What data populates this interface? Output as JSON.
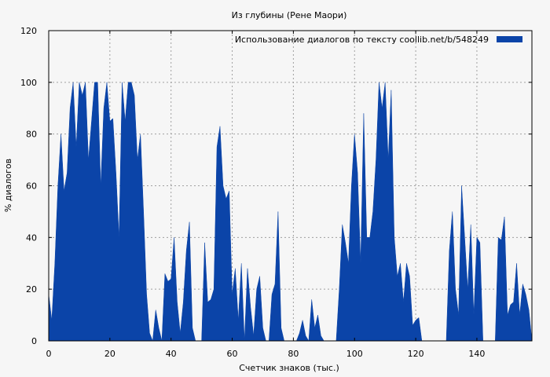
{
  "chart_data": {
    "type": "area",
    "title": "Из глубины (Рене Маори)",
    "xlabel": "Счетчик знаков (тыс.)",
    "ylabel": "% диалогов",
    "xlim": [
      0,
      158
    ],
    "ylim": [
      0,
      120
    ],
    "xticks": [
      0,
      20,
      40,
      60,
      80,
      100,
      120,
      140
    ],
    "yticks": [
      0,
      20,
      40,
      60,
      80,
      100,
      120
    ],
    "grid": true,
    "legend_position": "top-right",
    "series": [
      {
        "name": "Использование диалогов по тексту  coollib.net/b/548249",
        "color": "#0b44a8",
        "x": [
          0,
          1,
          2,
          3,
          4,
          5,
          6,
          7,
          8,
          9,
          10,
          11,
          12,
          13,
          14,
          15,
          16,
          17,
          18,
          19,
          20,
          21,
          22,
          23,
          24,
          25,
          26,
          27,
          28,
          29,
          30,
          31,
          32,
          33,
          34,
          35,
          36,
          37,
          38,
          39,
          40,
          41,
          42,
          43,
          44,
          45,
          46,
          47,
          48,
          49,
          50,
          51,
          52,
          53,
          54,
          55,
          56,
          57,
          58,
          59,
          60,
          61,
          62,
          63,
          64,
          65,
          66,
          67,
          68,
          69,
          70,
          71,
          72,
          73,
          74,
          75,
          76,
          77,
          78,
          79,
          80,
          81,
          82,
          83,
          84,
          85,
          86,
          87,
          88,
          89,
          90,
          91,
          92,
          93,
          94,
          95,
          96,
          97,
          98,
          99,
          100,
          101,
          102,
          103,
          104,
          105,
          106,
          107,
          108,
          109,
          110,
          111,
          112,
          113,
          114,
          115,
          116,
          117,
          118,
          119,
          120,
          121,
          122,
          123,
          124,
          125,
          126,
          127,
          128,
          129,
          130,
          131,
          132,
          133,
          134,
          135,
          136,
          137,
          138,
          139,
          140,
          141,
          142,
          143,
          144,
          145,
          146,
          147,
          148,
          149,
          150,
          151,
          152,
          153,
          154,
          155,
          156,
          157,
          158
        ],
        "values": [
          18,
          8,
          30,
          60,
          80,
          58,
          65,
          90,
          100,
          75,
          100,
          95,
          100,
          70,
          85,
          100,
          100,
          60,
          90,
          100,
          85,
          86,
          65,
          40,
          100,
          85,
          100,
          100,
          95,
          70,
          80,
          50,
          18,
          3,
          0,
          12,
          5,
          0,
          26,
          23,
          24,
          40,
          15,
          3,
          15,
          35,
          46,
          5,
          0,
          0,
          0,
          38,
          15,
          16,
          20,
          75,
          83,
          60,
          55,
          58,
          18,
          28,
          8,
          30,
          0,
          28,
          13,
          2,
          20,
          25,
          5,
          0,
          0,
          18,
          22,
          50,
          5,
          0,
          0,
          0,
          0,
          0,
          3,
          8,
          2,
          0,
          16,
          5,
          10,
          2,
          0,
          0,
          0,
          0,
          0,
          20,
          45,
          38,
          30,
          60,
          80,
          65,
          30,
          88,
          40,
          40,
          50,
          70,
          100,
          90,
          100,
          70,
          97,
          40,
          25,
          30,
          15,
          30,
          25,
          6,
          8,
          9,
          0,
          0,
          0,
          0,
          0,
          0,
          0,
          0,
          0,
          35,
          50,
          20,
          10,
          60,
          40,
          20,
          45,
          10,
          40,
          38,
          0,
          0,
          0,
          0,
          0,
          40,
          39,
          48,
          10,
          14,
          15,
          30,
          10,
          22,
          18,
          12,
          0
        ]
      }
    ]
  }
}
